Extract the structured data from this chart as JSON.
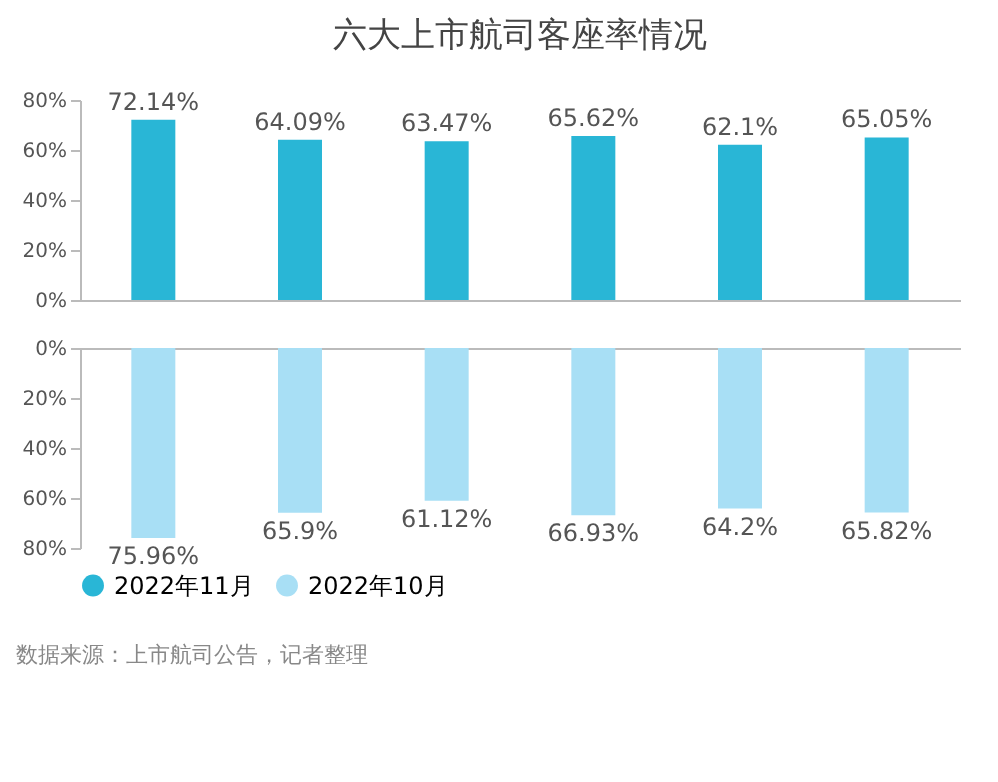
{
  "chart_data": [
    {
      "type": "bar",
      "title": "六大上市航司客座率情况",
      "categories": [
        null,
        null,
        null,
        null,
        null,
        null
      ],
      "series": [
        {
          "name": "2022年11月",
          "color": "#29b6d6",
          "values": [
            72.14,
            64.09,
            63.47,
            65.62,
            62.1,
            65.05
          ],
          "value_labels": [
            "72.14%",
            "64.09%",
            "63.47%",
            "65.62%",
            "62.1%",
            "65.05%"
          ]
        }
      ],
      "ylim": [
        0,
        80
      ],
      "yticks": [
        {
          "value": 0,
          "label": "0%"
        },
        {
          "value": 20,
          "label": "20%"
        },
        {
          "value": 40,
          "label": "40%"
        },
        {
          "value": 60,
          "label": "60%"
        },
        {
          "value": 80,
          "label": "80%"
        }
      ],
      "tick_labels": "y",
      "grid": false,
      "legend": "bottom"
    },
    {
      "type": "bar",
      "categories": [
        null,
        null,
        null,
        null,
        null,
        null
      ],
      "series": [
        {
          "name": "2022年10月",
          "color": "#a8dff5",
          "values": [
            75.96,
            65.9,
            61.12,
            66.93,
            64.2,
            65.82
          ],
          "value_labels": [
            "75.96%",
            "65.9%",
            "61.12%",
            "66.93%",
            "64.2%",
            "65.82%"
          ]
        }
      ],
      "ylim": [
        80,
        0
      ],
      "yticks": [
        {
          "value": 0,
          "label": "0%"
        },
        {
          "value": 20,
          "label": "20%"
        },
        {
          "value": 40,
          "label": "40%"
        },
        {
          "value": 60,
          "label": "60%"
        },
        {
          "value": 80,
          "label": "80%"
        }
      ],
      "tick_labels": "y",
      "grid": false,
      "legend": "bottom",
      "annotations": [
        "数据来源：上市航司公告，记者整理"
      ]
    }
  ]
}
